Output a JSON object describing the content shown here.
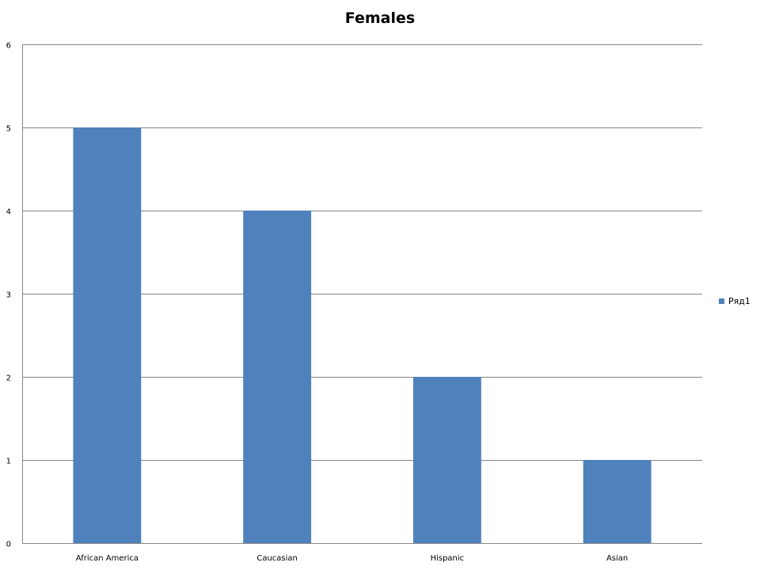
{
  "chart_data": {
    "type": "bar",
    "title": "Females",
    "categories": [
      "African America",
      "Caucasian",
      "Hispanic",
      "Asian"
    ],
    "series": [
      {
        "name": "Ряд1",
        "values": [
          5,
          4,
          2,
          1
        ],
        "color": "#4F81BD"
      }
    ],
    "ylim": [
      0,
      6
    ],
    "yticks": [
      "0",
      "1",
      "2",
      "3",
      "4",
      "5",
      "6"
    ],
    "grid": true,
    "legend_position": "right"
  }
}
